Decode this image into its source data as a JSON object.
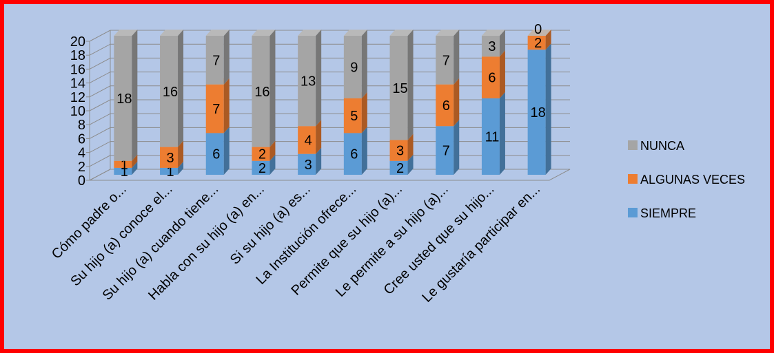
{
  "chart_data": {
    "type": "bar",
    "stacked": true,
    "three_d": true,
    "categories": [
      "Cómo padre o...",
      "Su hijo (a) conoce el...",
      "Su hijo (a)  cuando tiene...",
      "Habla con su hijo (a) en...",
      "Si su hijo (a) es...",
      "La Institución ofrece...",
      "Permite que su hijo (a)...",
      "Le permite a su hijo (a)...",
      "Cree usted que su hijo...",
      "Le gustaría participar en..."
    ],
    "series": [
      {
        "name": "SIEMPRE",
        "values": [
          1,
          1,
          6,
          2,
          3,
          6,
          2,
          7,
          11,
          18
        ]
      },
      {
        "name": "ALGUNAS VECES",
        "values": [
          1,
          3,
          7,
          2,
          4,
          5,
          3,
          6,
          6,
          2
        ]
      },
      {
        "name": "NUNCA",
        "values": [
          18,
          16,
          7,
          16,
          13,
          9,
          15,
          7,
          3,
          0
        ]
      }
    ],
    "yticks": [
      "0",
      "2",
      "4",
      "6",
      "8",
      "10",
      "12",
      "14",
      "16",
      "18",
      "20"
    ],
    "ylim": [
      0,
      20
    ],
    "grid": true,
    "legend": "right",
    "colors": {
      "SIEMPRE": "#5b9bd5",
      "ALGUNAS VECES": "#ed7d31",
      "NUNCA": "#a5a5a5",
      "background": "#b4c7e7",
      "border": "#ff0000"
    }
  }
}
